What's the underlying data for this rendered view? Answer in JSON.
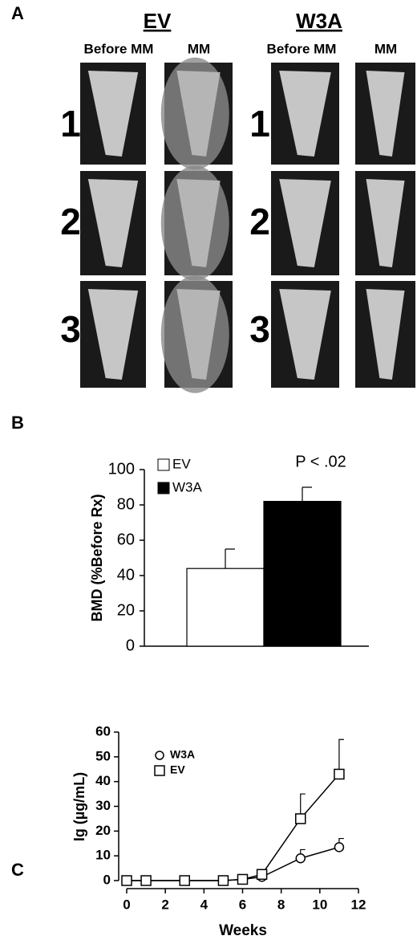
{
  "panel_a": {
    "label": "A",
    "groups": [
      "EV",
      "W3A"
    ],
    "columns": [
      "Before MM",
      "MM",
      "Before MM",
      "MM"
    ],
    "rows_left": [
      "1",
      "2",
      "3"
    ],
    "rows_right": [
      "1",
      "2",
      "3"
    ]
  },
  "chart_data": [
    {
      "type": "bar",
      "panel": "B",
      "ylabel": "BMD (%Before Rx)",
      "annotation": "P < .02",
      "categories": [
        null
      ],
      "ylim": [
        0,
        100
      ],
      "yticks": [
        0,
        20,
        40,
        60,
        80,
        100
      ],
      "series": [
        {
          "name": "EV",
          "color": "#ffffff",
          "values": [
            44
          ],
          "errors": [
            11
          ]
        },
        {
          "name": "W3A",
          "color": "#000000",
          "values": [
            82
          ],
          "errors": [
            8
          ]
        }
      ]
    },
    {
      "type": "line",
      "panel": "C",
      "xlabel": "Weeks",
      "ylabel": "Ig (µg/mL)",
      "xlim": [
        0,
        12
      ],
      "xticks": [
        0,
        2,
        4,
        6,
        8,
        10,
        12
      ],
      "ylim": [
        0,
        60
      ],
      "yticks": [
        0,
        10,
        20,
        30,
        40,
        50,
        60
      ],
      "x": [
        0,
        1,
        3,
        5,
        6,
        7,
        9,
        11
      ],
      "series": [
        {
          "name": "W3A",
          "marker": "circle",
          "color": "#000000",
          "values": [
            0,
            0,
            0,
            0,
            0.5,
            1.5,
            9,
            13.5
          ],
          "errors": [
            null,
            null,
            null,
            null,
            null,
            null,
            3.5,
            3.5
          ]
        },
        {
          "name": "EV",
          "marker": "square",
          "color": "#000000",
          "values": [
            0,
            0,
            0,
            0,
            0.5,
            2.5,
            25,
            43
          ],
          "errors": [
            null,
            null,
            null,
            null,
            null,
            null,
            10,
            14
          ]
        }
      ]
    }
  ]
}
